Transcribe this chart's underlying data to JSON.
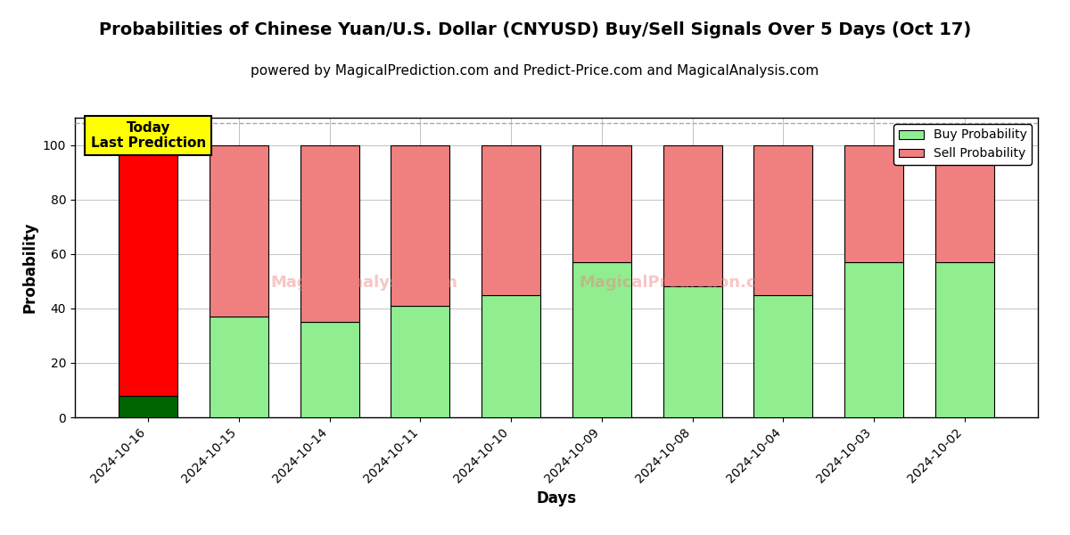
{
  "title": "Probabilities of Chinese Yuan/U.S. Dollar (CNYUSD) Buy/Sell Signals Over 5 Days (Oct 17)",
  "subtitle": "powered by MagicalPrediction.com and Predict-Price.com and MagicalAnalysis.com",
  "xlabel": "Days",
  "ylabel": "Probability",
  "categories": [
    "2024-10-16",
    "2024-10-15",
    "2024-10-14",
    "2024-10-11",
    "2024-10-10",
    "2024-10-09",
    "2024-10-08",
    "2024-10-04",
    "2024-10-03",
    "2024-10-02"
  ],
  "buy_values": [
    8,
    37,
    35,
    41,
    45,
    57,
    48,
    45,
    57,
    57
  ],
  "sell_values": [
    92,
    63,
    65,
    59,
    55,
    43,
    52,
    55,
    43,
    43
  ],
  "today_label": "Today\nLast Prediction",
  "buy_color_today": "#006400",
  "sell_color_today": "#ff0000",
  "buy_color_normal": "#90ee90",
  "sell_color_normal": "#f08080",
  "legend_buy_color": "#90ee90",
  "legend_sell_color": "#f08080",
  "today_box_color": "#ffff00",
  "ylim_max": 110,
  "dashed_line_y": 108,
  "yticks": [
    0,
    20,
    40,
    60,
    80,
    100
  ],
  "background_color": "#ffffff",
  "grid_color": "#aaaaaa",
  "title_fontsize": 14,
  "subtitle_fontsize": 11,
  "axis_label_fontsize": 12,
  "tick_fontsize": 10,
  "legend_fontsize": 10,
  "bar_width": 0.65
}
